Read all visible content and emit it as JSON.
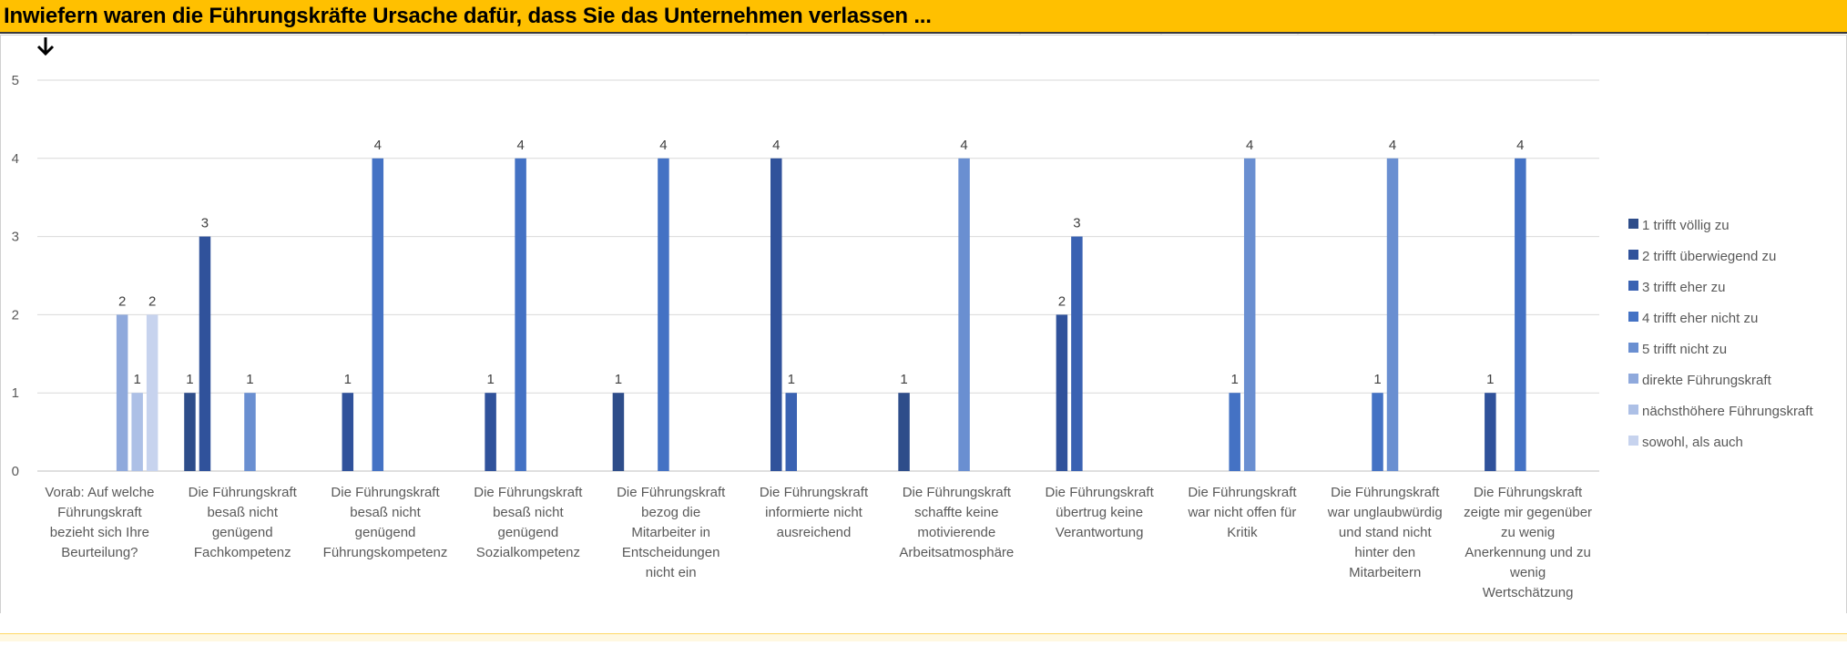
{
  "sheet": {
    "title": "Inwiefern waren die Führungskräfte Ursache dafür, dass Sie das Unternehmen verlassen ...",
    "title_bg": "#ffc000",
    "arrow_icon": "arrow-down-icon"
  },
  "chart_data": {
    "type": "bar",
    "title": "",
    "xlabel": "",
    "ylabel": "",
    "ylim": [
      0,
      5
    ],
    "yticks": [
      0,
      1,
      2,
      3,
      4,
      5
    ],
    "grid": true,
    "legend_position": "right",
    "categories": [
      [
        "Vorab: Auf welche",
        "Führungskraft",
        "bezieht sich Ihre",
        "Beurteilung?"
      ],
      [
        "Die Führungskraft",
        "besaß nicht",
        "genügend",
        "Fachkompetenz"
      ],
      [
        "Die Führungskraft",
        "besaß nicht",
        "genügend",
        "Führungskompetenz"
      ],
      [
        "Die Führungskraft",
        "besaß nicht",
        "genügend",
        "Sozialkompetenz"
      ],
      [
        "Die Führungskraft",
        "bezog die",
        "Mitarbeiter in",
        "Entscheidungen",
        "nicht ein"
      ],
      [
        "Die Führungskraft",
        "informierte nicht",
        "ausreichend"
      ],
      [
        "Die Führungskraft",
        "schaffte keine",
        "motivierende",
        "Arbeitsatmosphäre"
      ],
      [
        "Die Führungskraft",
        "übertrug keine",
        "Verantwortung"
      ],
      [
        "Die Führungskraft",
        "war nicht offen für",
        "Kritik"
      ],
      [
        "Die Führungskraft",
        "war unglaubwürdig",
        "und stand nicht",
        "hinter den",
        "Mitarbeitern"
      ],
      [
        "Die Führungskraft",
        "zeigte mir gegenüber",
        "zu wenig",
        "Anerkennung und zu",
        "wenig",
        "Wertschätzung"
      ]
    ],
    "series": [
      {
        "name": "1 trifft völlig zu",
        "color": "#2e4d8a",
        "values": [
          null,
          1,
          null,
          null,
          1,
          null,
          1,
          null,
          null,
          null,
          null
        ]
      },
      {
        "name": "2 trifft überwiegend zu",
        "color": "#30529b",
        "values": [
          null,
          3,
          1,
          1,
          null,
          4,
          null,
          2,
          null,
          null,
          1
        ]
      },
      {
        "name": "3 trifft eher zu",
        "color": "#3a62b2",
        "values": [
          null,
          null,
          null,
          null,
          null,
          1,
          null,
          3,
          null,
          null,
          null
        ]
      },
      {
        "name": "4 trifft eher nicht zu",
        "color": "#4472c4",
        "values": [
          null,
          null,
          4,
          4,
          4,
          null,
          null,
          null,
          1,
          1,
          4
        ]
      },
      {
        "name": "5 trifft nicht zu",
        "color": "#6a8fd1",
        "values": [
          null,
          1,
          null,
          null,
          null,
          null,
          4,
          null,
          4,
          4,
          null
        ]
      },
      {
        "name": "direkte Führungskraft",
        "color": "#8fa9dc",
        "values": [
          2,
          null,
          null,
          null,
          null,
          null,
          null,
          null,
          null,
          null,
          null
        ]
      },
      {
        "name": "nächsthöhere Führungskraft",
        "color": "#adc0e6",
        "values": [
          1,
          null,
          null,
          null,
          null,
          null,
          null,
          null,
          null,
          null,
          null
        ]
      },
      {
        "name": "sowohl, als auch",
        "color": "#c7d3ee",
        "values": [
          2,
          null,
          null,
          null,
          null,
          null,
          null,
          null,
          null,
          null,
          null
        ]
      }
    ]
  }
}
